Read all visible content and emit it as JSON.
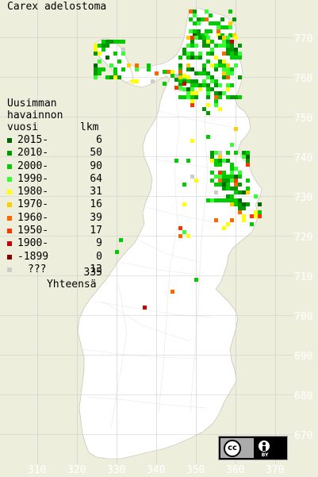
{
  "title": "Carex adelostoma",
  "legend": {
    "heading_lines": [
      "Uusimman",
      "havainnon",
      "vuosi"
    ],
    "count_heading": "lkm",
    "rows": [
      {
        "label": "2015-",
        "count": "6",
        "color": "#006600"
      },
      {
        "label": "2010-",
        "count": "50",
        "color": "#009900"
      },
      {
        "label": "2000-",
        "count": "90",
        "color": "#00cc00"
      },
      {
        "label": "1990-",
        "count": "64",
        "color": "#33ff33"
      },
      {
        "label": "1980-",
        "count": "31",
        "color": "#ffff00"
      },
      {
        "label": "1970-",
        "count": "16",
        "color": "#ffcc00"
      },
      {
        "label": "1960-",
        "count": "39",
        "color": "#ff6600"
      },
      {
        "label": "1950-",
        "count": "17",
        "color": "#ff3300"
      },
      {
        "label": "1900-",
        "count": "9",
        "color": "#cc0000"
      },
      {
        "label": "-1899",
        "count": "0",
        "color": "#880000"
      },
      {
        "label": "???",
        "count": "13",
        "color": "#cccccc"
      }
    ],
    "total_label": "Yhteensä",
    "total_count": "335"
  },
  "axes": {
    "y_ticks": [
      "770",
      "760",
      "750",
      "740",
      "730",
      "720",
      "710",
      "700",
      "690",
      "680",
      "670"
    ],
    "x_ticks": [
      "310",
      "320",
      "330",
      "340",
      "350",
      "360",
      "370"
    ]
  },
  "colors": {
    "background": "#eeeedd",
    "land": "#ffffff",
    "grid": "#cccccc",
    "borders": "#e0e0e0"
  },
  "license_badge": {
    "cc_text": "cc",
    "by_text": "BY",
    "icon": "creative-commons-by-icon"
  }
}
